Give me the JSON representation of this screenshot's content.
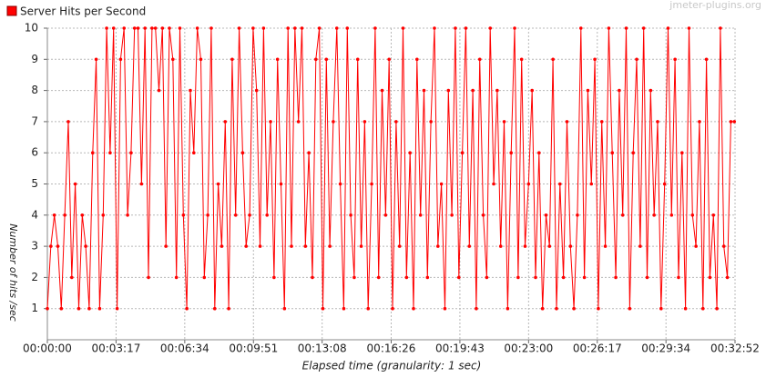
{
  "chart_data": {
    "type": "line",
    "legend_entry": "Server Hits per Second",
    "watermark": "jmeter-plugins.org",
    "y_label": "Number of hits /sec",
    "x_label": "Elapsed time (granularity: 1 sec)",
    "color": "#ff0000",
    "grid": true,
    "xlim": [
      0,
      1972
    ],
    "ylim": [
      0,
      10
    ],
    "yticks": [
      1,
      2,
      3,
      4,
      5,
      6,
      7,
      8,
      9,
      10
    ],
    "xticks": [
      {
        "value": 0,
        "label": "00:00:00"
      },
      {
        "value": 197,
        "label": "00:03:17"
      },
      {
        "value": 394,
        "label": "00:06:34"
      },
      {
        "value": 591,
        "label": "00:09:51"
      },
      {
        "value": 788,
        "label": "00:13:08"
      },
      {
        "value": 986,
        "label": "00:16:26"
      },
      {
        "value": 1183,
        "label": "00:19:43"
      },
      {
        "value": 1380,
        "label": "00:23:00"
      },
      {
        "value": 1577,
        "label": "00:26:17"
      },
      {
        "value": 1774,
        "label": "00:29:34"
      },
      {
        "value": 1972,
        "label": "00:32:52"
      }
    ],
    "x": [
      0,
      10,
      20,
      30,
      40,
      50,
      60,
      70,
      80,
      90,
      100,
      110,
      120,
      130,
      140,
      150,
      160,
      170,
      180,
      190,
      200,
      210,
      220,
      230,
      240,
      250,
      260,
      270,
      280,
      290,
      300,
      310,
      320,
      330,
      340,
      350,
      360,
      370,
      380,
      390,
      400,
      410,
      420,
      430,
      440,
      450,
      460,
      470,
      480,
      490,
      500,
      510,
      520,
      530,
      540,
      550,
      560,
      570,
      580,
      590,
      600,
      610,
      620,
      630,
      640,
      650,
      660,
      670,
      680,
      690,
      700,
      710,
      720,
      730,
      740,
      750,
      760,
      770,
      780,
      790,
      800,
      810,
      820,
      830,
      840,
      850,
      860,
      870,
      880,
      890,
      900,
      910,
      920,
      930,
      940,
      950,
      960,
      970,
      980,
      990,
      1000,
      1010,
      1020,
      1030,
      1040,
      1050,
      1060,
      1070,
      1080,
      1090,
      1100,
      1110,
      1120,
      1130,
      1140,
      1150,
      1160,
      1170,
      1180,
      1190,
      1200,
      1210,
      1220,
      1230,
      1240,
      1250,
      1260,
      1270,
      1280,
      1290,
      1300,
      1310,
      1320,
      1330,
      1340,
      1350,
      1360,
      1370,
      1380,
      1390,
      1400,
      1410,
      1420,
      1430,
      1440,
      1450,
      1460,
      1470,
      1480,
      1490,
      1500,
      1510,
      1520,
      1530,
      1540,
      1550,
      1560,
      1570,
      1580,
      1590,
      1600,
      1610,
      1620,
      1630,
      1640,
      1650,
      1660,
      1670,
      1680,
      1690,
      1700,
      1710,
      1720,
      1730,
      1740,
      1750,
      1760,
      1770,
      1780,
      1790,
      1800,
      1810,
      1820,
      1830,
      1840,
      1850,
      1860,
      1870,
      1880,
      1890,
      1900,
      1910,
      1920,
      1930,
      1940,
      1950,
      1960,
      1970
    ],
    "values": [
      1,
      3,
      4,
      3,
      1,
      4,
      7,
      2,
      5,
      1,
      4,
      3,
      1,
      6,
      9,
      1,
      4,
      10,
      6,
      10,
      1,
      9,
      10,
      4,
      6,
      10,
      10,
      5,
      10,
      2,
      10,
      10,
      8,
      10,
      3,
      10,
      9,
      2,
      10,
      4,
      1,
      8,
      6,
      10,
      9,
      2,
      4,
      10,
      1,
      5,
      3,
      7,
      1,
      9,
      4,
      10,
      6,
      3,
      4,
      10,
      8,
      3,
      10,
      4,
      7,
      2,
      9,
      5,
      1,
      10,
      3,
      10,
      7,
      10,
      3,
      6,
      2,
      9,
      10,
      1,
      9,
      3,
      7,
      10,
      5,
      1,
      10,
      4,
      2,
      9,
      3,
      7,
      1,
      5,
      10,
      2,
      8,
      4,
      9,
      1,
      7,
      3,
      10,
      2,
      6,
      1,
      9,
      4,
      8,
      2,
      7,
      10,
      3,
      5,
      1,
      8,
      4,
      10,
      2,
      6,
      10,
      3,
      8,
      1,
      9,
      4,
      2,
      10,
      5,
      8,
      3,
      7,
      1,
      6,
      10,
      2,
      9,
      3,
      5,
      8,
      2,
      6,
      1,
      4,
      3,
      9,
      1,
      5,
      2,
      7,
      3,
      1,
      4,
      10,
      2,
      8,
      5,
      9,
      1,
      7,
      3,
      10,
      6,
      2,
      8,
      4,
      10,
      1,
      6,
      9,
      3,
      10,
      2,
      8,
      4,
      7,
      1,
      5,
      10,
      4,
      9,
      2,
      6,
      1,
      10,
      4,
      3,
      7,
      1,
      9,
      2,
      4,
      1,
      10,
      3,
      2,
      7,
      7
    ]
  }
}
